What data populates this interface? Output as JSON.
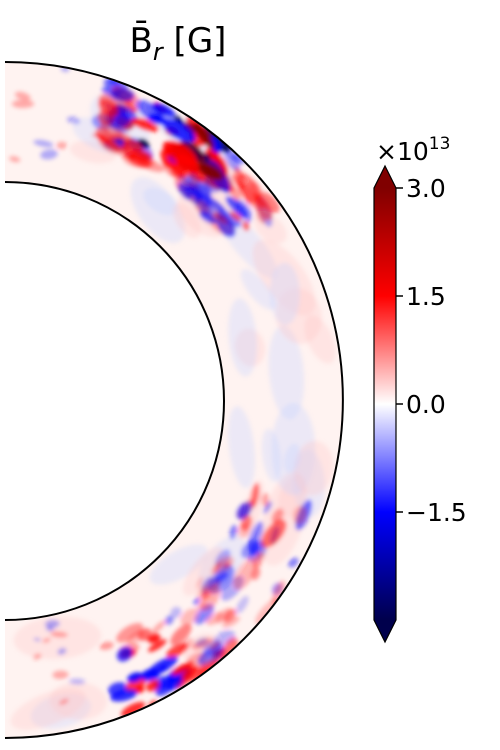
{
  "chart_data": {
    "type": "heatmap",
    "title": "B̄",
    "title_sub": "r",
    "title_unit": " [G]",
    "colorbar": {
      "colormap": "seismic",
      "min": -3.0,
      "max": 3.0,
      "extend": "both",
      "ticks": [
        {
          "value": 3.0,
          "label": "3.0"
        },
        {
          "value": 1.5,
          "label": "1.5"
        },
        {
          "value": 0.0,
          "label": "0.0"
        },
        {
          "value": -1.5,
          "label": "−1.5"
        }
      ],
      "exponent_base": "×10",
      "exponent_power": "13"
    },
    "colors": {
      "negative_extreme": "#00004c",
      "negative": "#0000ff",
      "neutral": "#ffffff",
      "positive": "#ff0000",
      "positive_extreme": "#800000"
    },
    "domain": "meridional half-annulus (spherical shell cross-section)"
  }
}
